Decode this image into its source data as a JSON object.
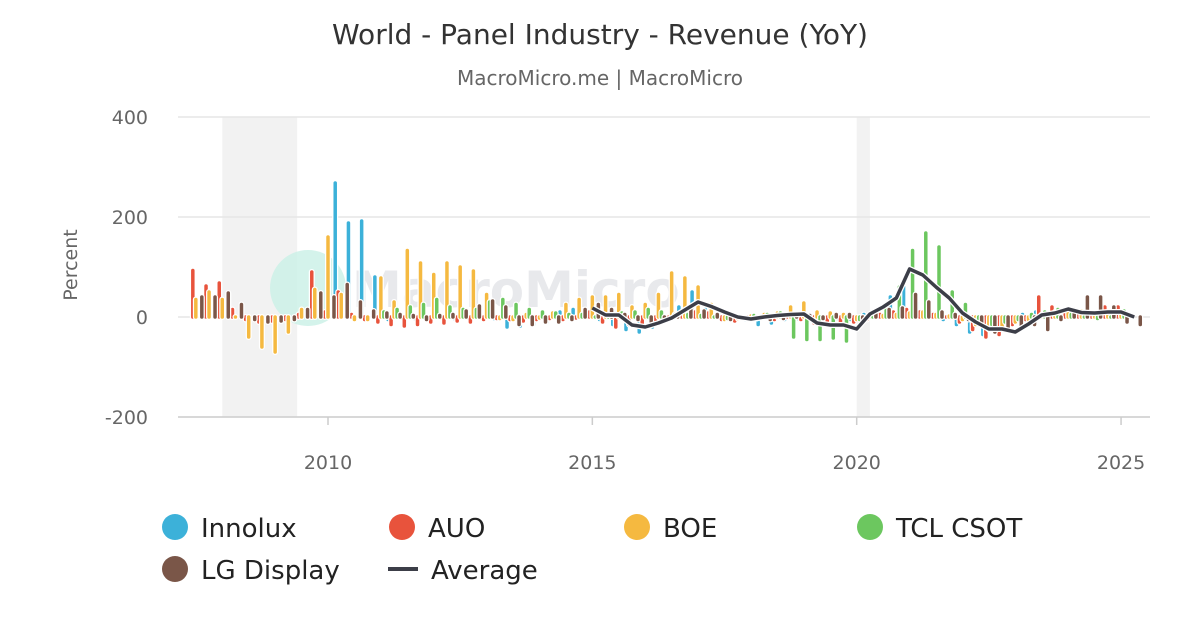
{
  "chart_data": {
    "type": "bar",
    "title": "World - Panel Industry - Revenue (YoY)",
    "subtitle": "MacroMicro.me | MacroMicro",
    "ylabel": "Percent",
    "xlabel": "",
    "ylim": [
      -200,
      400
    ],
    "yticks": [
      "400",
      "200",
      "0",
      "-200"
    ],
    "xticks": [
      "2010",
      "2015",
      "2020",
      "2025"
    ],
    "xlim": [
      "2007-06",
      "2025-06"
    ],
    "grid": true,
    "legend_position": "bottom",
    "frequency": "quarterly",
    "start_quarter": "2007Q3",
    "recession_bands": [
      [
        "2008-01",
        "2009-06"
      ],
      [
        "2020-01",
        "2020-04"
      ]
    ],
    "watermark": "MacroMicro",
    "series": [
      {
        "name": "Innolux",
        "type": "bar",
        "color": "#3CB1D9",
        "values": [
          null,
          null,
          null,
          null,
          null,
          null,
          null,
          null,
          null,
          null,
          null,
          268,
          188,
          192,
          80,
          -5,
          -2,
          -3,
          -3,
          -2,
          -3,
          -2,
          -2,
          -3,
          -20,
          -18,
          -15,
          -10,
          10,
          15,
          5,
          -5,
          -15,
          -25,
          -30,
          -20,
          -5,
          20,
          50,
          15,
          5,
          -3,
          -5,
          -15,
          -12,
          -5,
          -3,
          -5,
          -5,
          -3,
          -5,
          5,
          15,
          40,
          60,
          30,
          10,
          -5,
          -15,
          -30,
          -35,
          -25,
          -10,
          5,
          10,
          8,
          5,
          3,
          2,
          5,
          3,
          null
        ]
      },
      {
        "name": "AUO",
        "type": "bar",
        "color": "#E8533C",
        "values": [
          93,
          62,
          68,
          15,
          -5,
          -10,
          -8,
          -5,
          5,
          90,
          10,
          50,
          5,
          -5,
          -10,
          -15,
          -18,
          -15,
          -10,
          -12,
          -8,
          -10,
          -5,
          -3,
          -5,
          -8,
          -5,
          -3,
          -5,
          -2,
          10,
          -10,
          -20,
          -15,
          -20,
          -10,
          -5,
          5,
          10,
          8,
          -5,
          -8,
          -5,
          -3,
          -5,
          5,
          -5,
          -12,
          -15,
          -15,
          -10,
          -5,
          5,
          10,
          15,
          10,
          5,
          0,
          -10,
          -25,
          -40,
          -35,
          -15,
          -5,
          40,
          20,
          10,
          5,
          8,
          20,
          20,
          null
        ]
      },
      {
        "name": "BOE",
        "type": "bar",
        "color": "#F5B940",
        "values": [
          35,
          50,
          35,
          0,
          -40,
          -60,
          -70,
          -30,
          15,
          55,
          160,
          45,
          -5,
          -5,
          78,
          30,
          133,
          108,
          85,
          108,
          100,
          92,
          45,
          -3,
          -5,
          5,
          -2,
          8,
          25,
          35,
          40,
          40,
          45,
          20,
          25,
          45,
          88,
          78,
          60,
          25,
          -5,
          -3,
          2,
          5,
          8,
          20,
          28,
          10,
          8,
          5,
          -5,
          0,
          3,
          5,
          8,
          10,
          5,
          2,
          -5,
          -15,
          -25,
          -20,
          -10,
          -5,
          5,
          10,
          15,
          12,
          10,
          8,
          5,
          null
        ]
      },
      {
        "name": "TCL CSOT",
        "type": "bar",
        "color": "#6CC75F",
        "values": [
          null,
          null,
          null,
          null,
          null,
          null,
          null,
          null,
          null,
          null,
          null,
          null,
          null,
          null,
          10,
          15,
          20,
          25,
          35,
          20,
          15,
          15,
          30,
          35,
          25,
          15,
          10,
          8,
          5,
          5,
          0,
          5,
          8,
          10,
          15,
          10,
          5,
          5,
          3,
          0,
          -3,
          0,
          3,
          5,
          8,
          -40,
          -45,
          -45,
          -42,
          -48,
          -5,
          5,
          20,
          60,
          133,
          168,
          140,
          50,
          25,
          -5,
          -15,
          -10,
          -5,
          5,
          10,
          15,
          5,
          0,
          -3,
          0,
          12,
          null
        ]
      },
      {
        "name": "LG Display",
        "type": "bar",
        "color": "#7A5648",
        "values": [
          40,
          40,
          48,
          25,
          -5,
          -10,
          -8,
          -5,
          15,
          48,
          40,
          65,
          30,
          12,
          8,
          5,
          3,
          -5,
          3,
          5,
          12,
          22,
          32,
          20,
          -15,
          -15,
          -10,
          -10,
          -5,
          15,
          25,
          15,
          5,
          -5,
          -10,
          -5,
          5,
          15,
          12,
          5,
          -5,
          -3,
          -3,
          -5,
          -3,
          3,
          3,
          -3,
          5,
          5,
          -5,
          5,
          15,
          18,
          45,
          30,
          10,
          5,
          -5,
          -15,
          -30,
          -25,
          -20,
          -15,
          -25,
          -5,
          15,
          40,
          40,
          20,
          -10,
          -15
        ]
      },
      {
        "name": "Average",
        "type": "line",
        "color": "#3C3E48",
        "values": [
          null,
          null,
          null,
          null,
          null,
          null,
          null,
          null,
          null,
          null,
          null,
          null,
          null,
          null,
          null,
          null,
          null,
          null,
          null,
          null,
          null,
          null,
          null,
          null,
          null,
          null,
          null,
          null,
          null,
          null,
          18,
          4,
          4,
          -16,
          -20,
          -12,
          -2,
          14,
          30,
          21,
          10,
          0,
          -4,
          0,
          3,
          5,
          6,
          -12,
          -16,
          -16,
          -24,
          6,
          20,
          38,
          96,
          84,
          60,
          38,
          8,
          -10,
          -24,
          -24,
          -30,
          -14,
          4,
          8,
          16,
          9,
          8,
          10,
          10,
          0
        ]
      }
    ]
  }
}
